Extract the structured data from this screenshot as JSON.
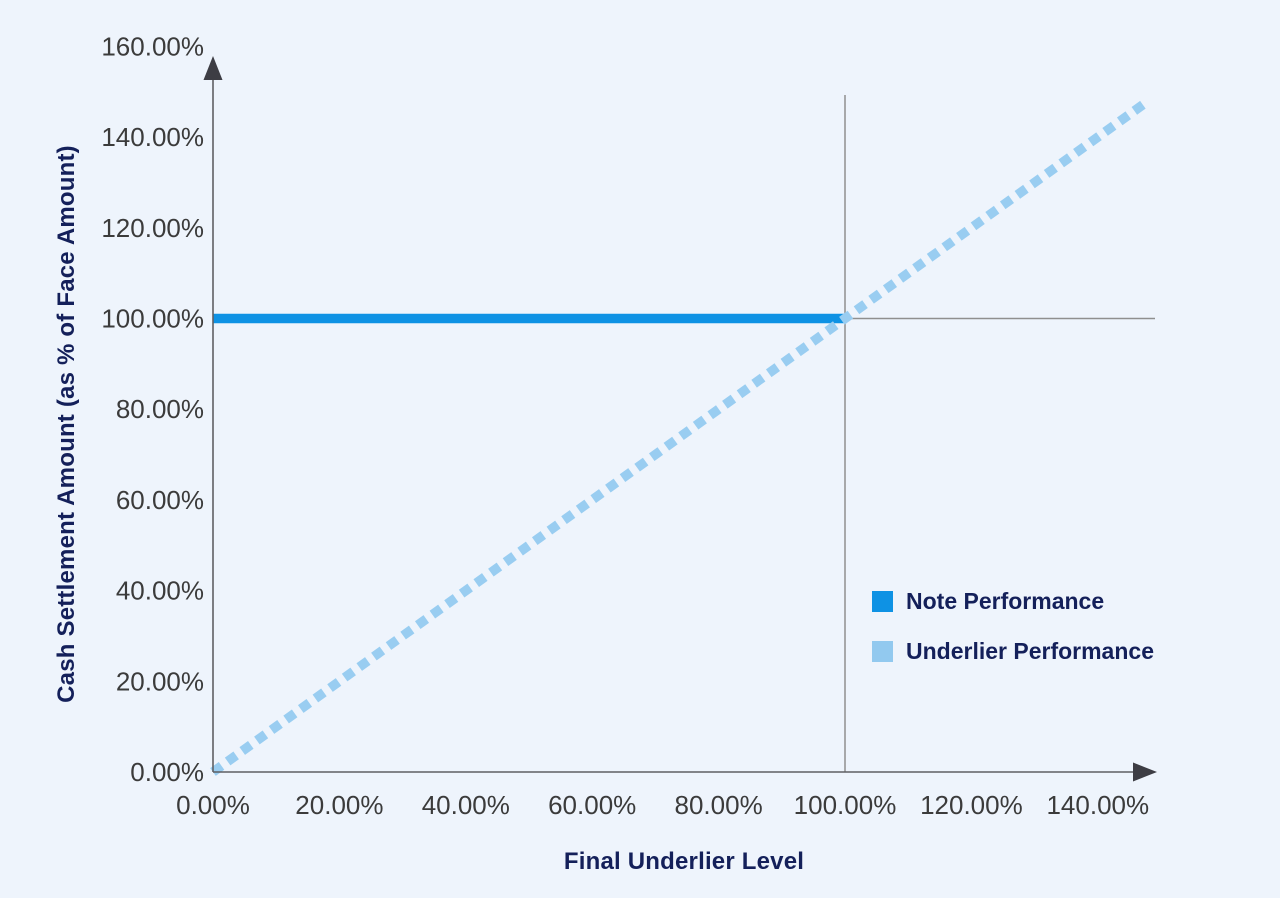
{
  "colors": {
    "background": "#eef4fc",
    "axis_line": "#5f5f63",
    "arrowhead": "#3d3d44",
    "reference_line": "#8f8f8f",
    "tick_label": "#3b3b3b",
    "title_text": "#14205a",
    "note_blue": "#0e92e4",
    "underlier_light_blue": "#99cdf1",
    "legend_swatch_underlier": "#92c9ef"
  },
  "chart_data": {
    "type": "line",
    "title": "",
    "xlabel": "Final Underlier Level",
    "ylabel": "Cash Settlement Amount (as % of Face Amount)",
    "x_axis": {
      "min": 0,
      "max_extent": 149,
      "tick_values": [
        0,
        20,
        40,
        60,
        80,
        100,
        120,
        140
      ],
      "tick_labels": [
        "0.00%",
        "20.00%",
        "40.00%",
        "60.00%",
        "80.00%",
        "100.00%",
        "120.00%",
        "140.00%"
      ]
    },
    "y_axis": {
      "min": 0,
      "max_extent": 160,
      "tick_values": [
        0,
        20,
        40,
        60,
        80,
        100,
        120,
        140,
        160
      ],
      "tick_labels": [
        "0.00%",
        "20.00%",
        "40.00%",
        "60.00%",
        "80.00%",
        "100.00%",
        "120.00%",
        "140.00%",
        "160.00%"
      ]
    },
    "series": [
      {
        "name": "Note Performance",
        "color": "#0e92e4",
        "style": "solid",
        "points": [
          [
            0,
            100
          ],
          [
            100.2,
            100
          ]
        ]
      },
      {
        "name": "Underlier Performance",
        "color": "#99cdf1",
        "style": "dashed",
        "points": [
          [
            0,
            0
          ],
          [
            148,
            148
          ]
        ]
      }
    ],
    "reference_lines": {
      "vertical_at_x": 100,
      "horizontal_at_y": 100
    },
    "grid": "off",
    "legend_position": "middle-right"
  }
}
